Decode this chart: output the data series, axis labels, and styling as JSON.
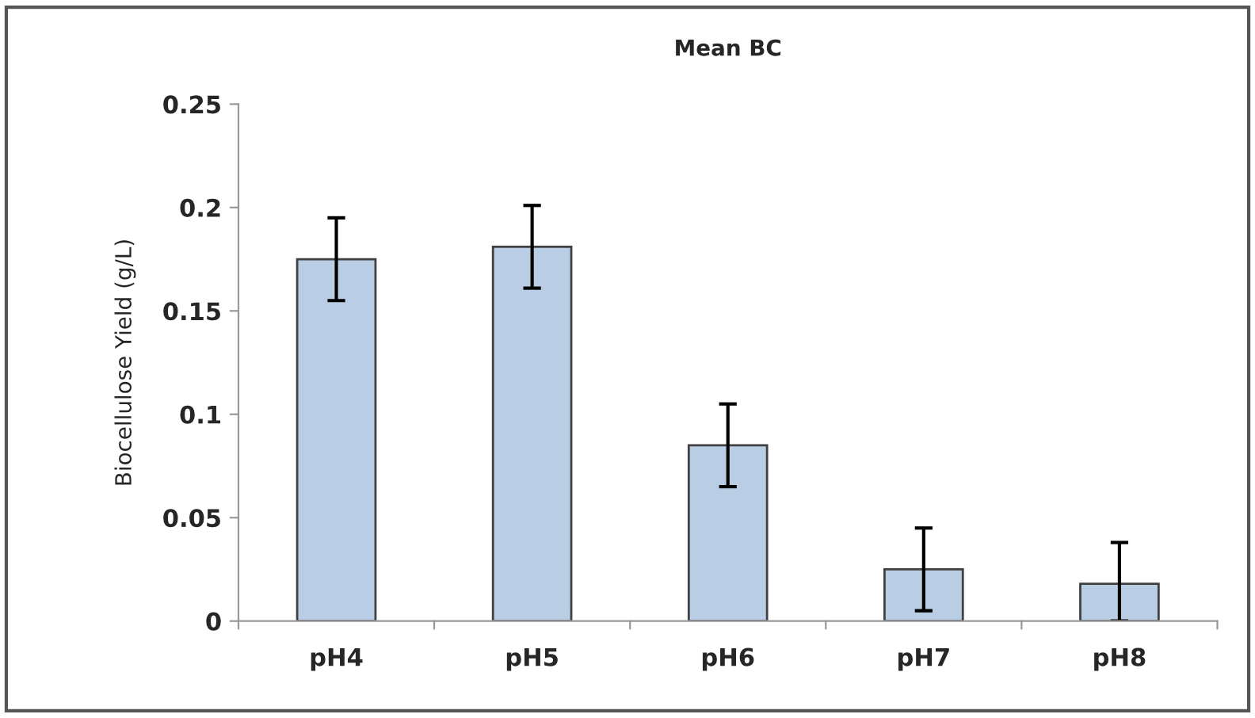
{
  "chart_data": {
    "type": "bar",
    "title": "Mean BC",
    "ylabel": "Biocellulose Yield (g/L)",
    "categories": [
      "pH4",
      "pH5",
      "pH6",
      "pH7",
      "pH8"
    ],
    "series": [
      {
        "color": "#b9cde5",
        "values": [
          0.175,
          0.181,
          0.085,
          0.025,
          0.018
        ],
        "errors": [
          0.02,
          0.02,
          0.02,
          0.02,
          [
            0,
            0.038
          ]
        ]
      }
    ],
    "ylim": [
      0,
      0.25
    ],
    "yticks": [
      0,
      0.05,
      0.1,
      0.15,
      0.2,
      0.25
    ],
    "grid": false,
    "legend": false
  }
}
